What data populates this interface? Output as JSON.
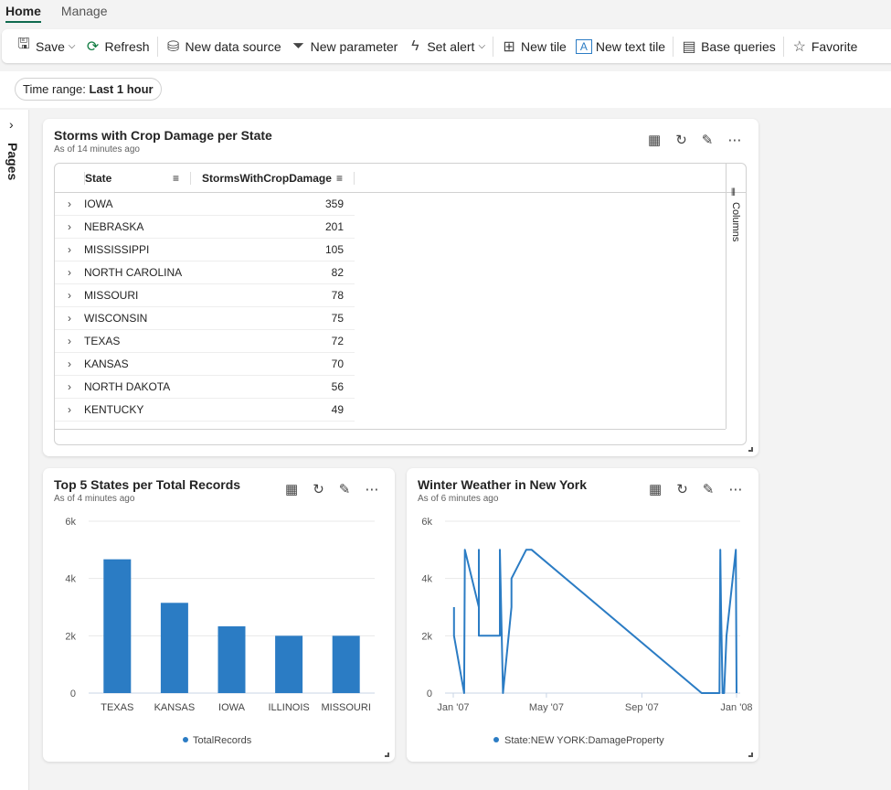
{
  "tabs": [
    {
      "label": "Home",
      "active": true
    },
    {
      "label": "Manage",
      "active": false
    }
  ],
  "toolbar": {
    "save": "Save",
    "refresh": "Refresh",
    "new_data_source": "New data source",
    "new_parameter": "New parameter",
    "set_alert": "Set alert",
    "new_tile": "New tile",
    "new_text_tile": "New text tile",
    "base_queries": "Base queries",
    "favorite": "Favorite"
  },
  "filters": {
    "time_range_label": "Time range:",
    "time_range_value": "Last 1 hour"
  },
  "rail": {
    "label": "Pages"
  },
  "tiles": [
    {
      "title": "Storms with Crop Damage per State",
      "subtitle": "As of 14 minutes ago",
      "columns": [
        "State",
        "StormsWithCropDamage"
      ],
      "columns_panel": "Columns",
      "rows": [
        [
          "IOWA",
          "359"
        ],
        [
          "NEBRASKA",
          "201"
        ],
        [
          "MISSISSIPPI",
          "105"
        ],
        [
          "NORTH CAROLINA",
          "82"
        ],
        [
          "MISSOURI",
          "78"
        ],
        [
          "WISCONSIN",
          "75"
        ],
        [
          "TEXAS",
          "72"
        ],
        [
          "KANSAS",
          "70"
        ],
        [
          "NORTH DAKOTA",
          "56"
        ],
        [
          "KENTUCKY",
          "49"
        ]
      ]
    },
    {
      "title": "Top 5 States per Total Records",
      "subtitle": "As of 4 minutes ago"
    },
    {
      "title": "Winter Weather in New York",
      "subtitle": "As of 6 minutes ago"
    }
  ],
  "accent": "#2b7cc4",
  "chart_data": [
    {
      "type": "bar",
      "categories": [
        "TEXAS",
        "KANSAS",
        "IOWA",
        "ILLINOIS",
        "MISSOURI"
      ],
      "series": [
        {
          "name": "TotalRecords",
          "values": [
            4670,
            3150,
            2330,
            2000,
            2000
          ]
        }
      ],
      "ylim": [
        0,
        6000
      ],
      "yticks": [
        "0",
        "2k",
        "4k",
        "6k"
      ],
      "grid": true,
      "legend": "bottom"
    },
    {
      "type": "line",
      "xticks": [
        "Jan '07",
        "May '07",
        "Sep '07",
        "Jan '08"
      ],
      "ylim": [
        0,
        6000
      ],
      "yticks": [
        "0",
        "2k",
        "4k",
        "6k"
      ],
      "grid": true,
      "legend": "bottom",
      "series": [
        {
          "name": "State:NEW YORK:DamageProperty",
          "points": [
            [
              "2007-01-02",
              3000
            ],
            [
              "2007-01-02",
              2000
            ],
            [
              "2007-01-15",
              0
            ],
            [
              "2007-01-16",
              5000
            ],
            [
              "2007-02-03",
              3000
            ],
            [
              "2007-02-03",
              5000
            ],
            [
              "2007-02-03",
              2000
            ],
            [
              "2007-03-02",
              2000
            ],
            [
              "2007-03-02",
              5000
            ],
            [
              "2007-03-06",
              0
            ],
            [
              "2007-03-17",
              3000
            ],
            [
              "2007-03-17",
              4000
            ],
            [
              "2007-04-05",
              5000
            ],
            [
              "2007-04-12",
              5000
            ],
            [
              "2007-11-17",
              0
            ],
            [
              "2007-12-10",
              0
            ],
            [
              "2007-12-11",
              5000
            ],
            [
              "2007-12-12",
              3000
            ],
            [
              "2007-12-14",
              0
            ],
            [
              "2007-12-16",
              0
            ],
            [
              "2007-12-19",
              2000
            ],
            [
              "2007-12-31",
              5000
            ],
            [
              "2008-01-01",
              0
            ]
          ]
        }
      ]
    }
  ]
}
